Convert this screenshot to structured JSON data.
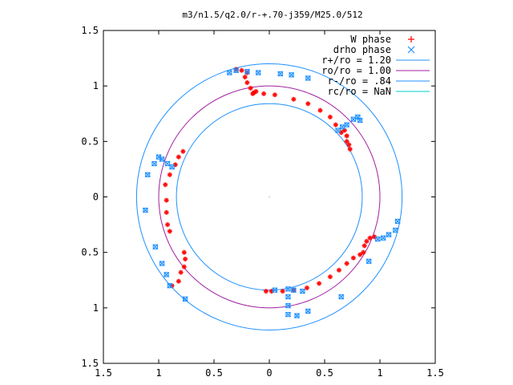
{
  "chart_data": {
    "type": "scatter",
    "title": "m3/n1.5/q2.0/r-+.70-j359/M25.0/512",
    "xlim": [
      -1.5,
      1.5
    ],
    "ylim": [
      -1.5,
      1.5
    ],
    "xticks": [
      -1.5,
      -1,
      -0.5,
      0,
      0.5,
      1,
      1.5
    ],
    "yticks": [
      -1.5,
      -1,
      -0.5,
      0,
      0.5,
      1,
      1.5
    ],
    "xtick_labels": [
      "1.5",
      "1",
      "0.5",
      "0",
      "0.5",
      "1",
      "1.5"
    ],
    "ytick_labels": [
      "1.5",
      "1",
      "0.5",
      "0",
      "0.5",
      "1",
      "1.5"
    ],
    "legend_position": "top-right",
    "grid": false,
    "colors": {
      "w_phase": "#ff0000",
      "drho_phase": "#1e90ff",
      "r_plus": "#1e90ff",
      "r_o": "#a020a0",
      "r_minus": "#1e90ff",
      "r_c": "#00cccc"
    },
    "circles": [
      {
        "name": "r+/ro = 1.20",
        "r": 1.2
      },
      {
        "name": "ro/ro = 1.00",
        "r": 1.0
      },
      {
        "name": "r-/ro = .84",
        "r": 0.84
      },
      {
        "name": "rc/ro = NaN",
        "r": null
      }
    ],
    "series": [
      {
        "name": "W phase",
        "marker": "red",
        "points": [
          [
            -0.14,
            0.94
          ],
          [
            -0.12,
            0.95
          ],
          [
            -0.15,
            0.93
          ],
          [
            -0.17,
            0.98
          ],
          [
            -0.2,
            1.03
          ],
          [
            -0.22,
            1.08
          ],
          [
            -0.2,
            1.12
          ],
          [
            -0.25,
            1.14
          ],
          [
            -0.3,
            1.15
          ],
          [
            -0.05,
            0.93
          ],
          [
            0.05,
            0.92
          ],
          [
            0.22,
            0.88
          ],
          [
            0.35,
            0.84
          ],
          [
            0.46,
            0.78
          ],
          [
            0.55,
            0.72
          ],
          [
            0.6,
            0.65
          ],
          [
            0.65,
            0.58
          ],
          [
            0.7,
            0.5
          ],
          [
            0.73,
            0.43
          ],
          [
            0.72,
            0.47
          ],
          [
            0.7,
            0.55
          ],
          [
            0.68,
            0.6
          ],
          [
            -0.78,
            0.41
          ],
          [
            -0.82,
            0.36
          ],
          [
            -0.85,
            0.29
          ],
          [
            -0.9,
            0.2
          ],
          [
            -0.94,
            0.11
          ],
          [
            -0.93,
            -0.03
          ],
          [
            -0.93,
            -0.14
          ],
          [
            -0.92,
            -0.25
          ],
          [
            -0.9,
            -0.31
          ],
          [
            -0.77,
            -0.5
          ],
          [
            -0.76,
            -0.56
          ],
          [
            -0.77,
            -0.63
          ],
          [
            -0.8,
            -0.68
          ],
          [
            -0.82,
            -0.76
          ],
          [
            -0.88,
            -0.8
          ],
          [
            0.95,
            -0.36
          ],
          [
            0.91,
            -0.37
          ],
          [
            0.88,
            -0.4
          ],
          [
            0.86,
            -0.44
          ],
          [
            0.85,
            -0.5
          ],
          [
            0.82,
            -0.52
          ],
          [
            0.76,
            -0.55
          ],
          [
            0.7,
            -0.6
          ],
          [
            0.63,
            -0.66
          ],
          [
            0.55,
            -0.72
          ],
          [
            0.45,
            -0.78
          ],
          [
            0.34,
            -0.82
          ],
          [
            0.22,
            -0.84
          ],
          [
            0.12,
            -0.85
          ],
          [
            0.02,
            -0.85
          ],
          [
            -0.03,
            -0.85
          ]
        ]
      },
      {
        "name": "drho phase",
        "marker": "blue",
        "points": [
          [
            -0.36,
            1.12
          ],
          [
            -0.3,
            1.14
          ],
          [
            -0.2,
            1.13
          ],
          [
            -0.1,
            1.12
          ],
          [
            0.1,
            1.11
          ],
          [
            0.2,
            1.1
          ],
          [
            0.35,
            1.07
          ],
          [
            0.62,
            0.6
          ],
          [
            0.66,
            0.63
          ],
          [
            0.7,
            0.65
          ],
          [
            0.76,
            0.7
          ],
          [
            0.8,
            0.72
          ],
          [
            0.82,
            0.69
          ],
          [
            -1.0,
            0.36
          ],
          [
            -0.97,
            0.34
          ],
          [
            -0.92,
            0.3
          ],
          [
            -0.88,
            0.27
          ],
          [
            -1.04,
            0.3
          ],
          [
            -1.1,
            0.2
          ],
          [
            -1.12,
            -0.12
          ],
          [
            -1.03,
            -0.45
          ],
          [
            -0.97,
            -0.6
          ],
          [
            -0.93,
            -0.7
          ],
          [
            -0.9,
            -0.8
          ],
          [
            -0.76,
            -0.92
          ],
          [
            0.98,
            -0.38
          ],
          [
            1.03,
            -0.37
          ],
          [
            1.08,
            -0.34
          ],
          [
            1.14,
            -0.3
          ],
          [
            1.16,
            -0.22
          ],
          [
            0.9,
            -0.58
          ],
          [
            0.65,
            -0.9
          ],
          [
            0.35,
            -1.03
          ],
          [
            0.25,
            -1.07
          ],
          [
            0.17,
            -0.83
          ],
          [
            0.17,
            -0.9
          ],
          [
            0.17,
            -0.98
          ],
          [
            0.17,
            -1.06
          ],
          [
            0.05,
            -0.84
          ],
          [
            0.22,
            -0.84
          ],
          [
            0.3,
            -0.85
          ]
        ]
      }
    ]
  }
}
